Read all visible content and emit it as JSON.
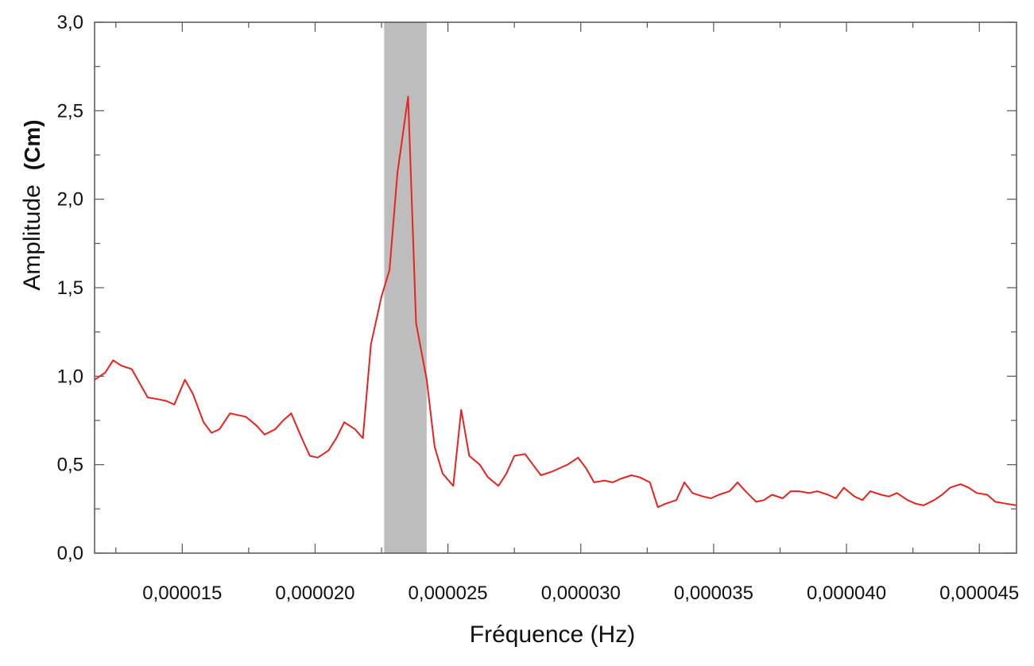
{
  "chart_data": {
    "type": "line",
    "xlabel": "Fréquence (Hz)",
    "ylabel": "Amplitude",
    "ylabel_unit": "(Cm)",
    "xlim": [
      1.17e-05,
      4.64e-05
    ],
    "ylim": [
      0.0,
      3.0
    ],
    "x_ticks": [
      {
        "value": 1.5e-05,
        "label": "0,000015"
      },
      {
        "value": 2e-05,
        "label": "0,000020"
      },
      {
        "value": 2.5e-05,
        "label": "0,000025"
      },
      {
        "value": 3e-05,
        "label": "0,000030"
      },
      {
        "value": 3.5e-05,
        "label": "0,000035"
      },
      {
        "value": 4e-05,
        "label": "0,000040"
      },
      {
        "value": 4.5e-05,
        "label": "0,000045"
      }
    ],
    "y_ticks": [
      {
        "value": 0.0,
        "label": "0,0"
      },
      {
        "value": 0.5,
        "label": "0,5"
      },
      {
        "value": 1.0,
        "label": "1,0"
      },
      {
        "value": 1.5,
        "label": "1,5"
      },
      {
        "value": 2.0,
        "label": "2,0"
      },
      {
        "value": 2.5,
        "label": "2,5"
      },
      {
        "value": 3.0,
        "label": "3,0"
      }
    ],
    "grid": false,
    "line_color": "#e8231f",
    "highlight_band": {
      "x0": 2.26e-05,
      "x1": 2.42e-05,
      "color": "#bdbdbd"
    },
    "series": [
      {
        "x": [
          1.17e-05,
          1.21e-05,
          1.24e-05,
          1.27e-05,
          1.31e-05,
          1.34e-05,
          1.37e-05,
          1.41e-05,
          1.44e-05,
          1.47e-05,
          1.51e-05,
          1.54e-05,
          1.58e-05,
          1.61e-05,
          1.64e-05,
          1.68e-05,
          1.71e-05,
          1.74e-05,
          1.78e-05,
          1.81e-05,
          1.85e-05,
          1.88e-05,
          1.91e-05,
          1.95e-05,
          1.98e-05,
          2.01e-05,
          2.05e-05,
          2.08e-05,
          2.11e-05,
          2.15e-05,
          2.18e-05,
          2.21e-05,
          2.25e-05,
          2.28e-05,
          2.31e-05,
          2.35e-05,
          2.38e-05,
          2.42e-05,
          2.45e-05,
          2.48e-05,
          2.52e-05,
          2.55e-05,
          2.58e-05,
          2.62e-05,
          2.65e-05,
          2.69e-05,
          2.72e-05,
          2.75e-05,
          2.79e-05,
          2.82e-05,
          2.85e-05,
          2.89e-05,
          2.92e-05,
          2.95e-05,
          2.99e-05,
          3.02e-05,
          3.05e-05,
          3.09e-05,
          3.12e-05,
          3.15e-05,
          3.19e-05,
          3.22e-05,
          3.26e-05,
          3.29e-05,
          3.32e-05,
          3.36e-05,
          3.39e-05,
          3.42e-05,
          3.46e-05,
          3.49e-05,
          3.52e-05,
          3.56e-05,
          3.59e-05,
          3.62e-05,
          3.66e-05,
          3.69e-05,
          3.72e-05,
          3.76e-05,
          3.79e-05,
          3.82e-05,
          3.86e-05,
          3.89e-05,
          3.93e-05,
          3.96e-05,
          3.99e-05,
          4.03e-05,
          4.06e-05,
          4.09e-05,
          4.13e-05,
          4.16e-05,
          4.19e-05,
          4.23e-05,
          4.26e-05,
          4.29e-05,
          4.33e-05,
          4.36e-05,
          4.39e-05,
          4.43e-05,
          4.46e-05,
          4.49e-05,
          4.53e-05,
          4.56e-05,
          4.6e-05,
          4.64e-05
        ],
        "y": [
          0.98,
          1.02,
          1.09,
          1.06,
          1.04,
          0.96,
          0.88,
          0.87,
          0.86,
          0.84,
          0.98,
          0.9,
          0.74,
          0.68,
          0.7,
          0.79,
          0.78,
          0.77,
          0.72,
          0.67,
          0.7,
          0.75,
          0.79,
          0.65,
          0.55,
          0.54,
          0.58,
          0.65,
          0.74,
          0.7,
          0.65,
          1.18,
          1.45,
          1.6,
          2.15,
          2.58,
          1.3,
          0.98,
          0.6,
          0.45,
          0.38,
          0.81,
          0.55,
          0.5,
          0.43,
          0.38,
          0.45,
          0.55,
          0.56,
          0.5,
          0.44,
          0.46,
          0.48,
          0.5,
          0.54,
          0.48,
          0.4,
          0.41,
          0.4,
          0.42,
          0.44,
          0.43,
          0.4,
          0.26,
          0.28,
          0.3,
          0.4,
          0.34,
          0.32,
          0.31,
          0.33,
          0.35,
          0.4,
          0.35,
          0.29,
          0.3,
          0.33,
          0.31,
          0.35,
          0.35,
          0.34,
          0.35,
          0.33,
          0.31,
          0.37,
          0.32,
          0.3,
          0.35,
          0.33,
          0.32,
          0.34,
          0.3,
          0.28,
          0.27,
          0.3,
          0.33,
          0.37,
          0.39,
          0.37,
          0.34,
          0.33,
          0.29,
          0.28,
          0.27
        ]
      }
    ]
  }
}
